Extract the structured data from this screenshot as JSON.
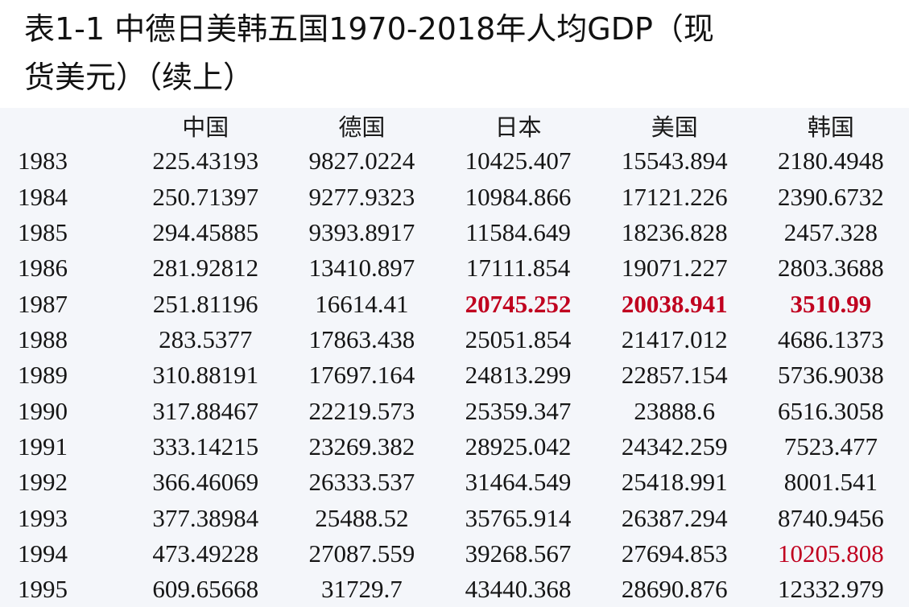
{
  "title": {
    "line1": "表1-1 中德日美韩五国1970-2018年人均GDP（现",
    "line2": "货美元）（续上）"
  },
  "table": {
    "headers": [
      "",
      "中国",
      "德国",
      "日本",
      "美国",
      "韩国"
    ],
    "rows": [
      {
        "year": "1983",
        "values": [
          "225.43193",
          "9827.0224",
          "10425.407",
          "15543.894",
          "2180.4948"
        ]
      },
      {
        "year": "1984",
        "values": [
          "250.71397",
          "9277.9323",
          "10984.866",
          "17121.226",
          "2390.6732"
        ]
      },
      {
        "year": "1985",
        "values": [
          "294.45885",
          "9393.8917",
          "11584.649",
          "18236.828",
          "2457.328"
        ]
      },
      {
        "year": "1986",
        "values": [
          "281.92812",
          "13410.897",
          "17111.854",
          "19071.227",
          "2803.3688"
        ]
      },
      {
        "year": "1987",
        "values": [
          "251.81196",
          "16614.41",
          "20745.252",
          "20038.941",
          "3510.99"
        ]
      },
      {
        "year": "1988",
        "values": [
          "283.5377",
          "17863.438",
          "25051.854",
          "21417.012",
          "4686.1373"
        ]
      },
      {
        "year": "1989",
        "values": [
          "310.88191",
          "17697.164",
          "24813.299",
          "22857.154",
          "5736.9038"
        ]
      },
      {
        "year": "1990",
        "values": [
          "317.88467",
          "22219.573",
          "25359.347",
          "23888.6",
          "6516.3058"
        ]
      },
      {
        "year": "1991",
        "values": [
          "333.14215",
          "23269.382",
          "28925.042",
          "24342.259",
          "7523.477"
        ]
      },
      {
        "year": "1992",
        "values": [
          "366.46069",
          "26333.537",
          "31464.549",
          "25418.991",
          "8001.541"
        ]
      },
      {
        "year": "1993",
        "values": [
          "377.38984",
          "25488.52",
          "35765.914",
          "26387.294",
          "8740.9456"
        ]
      },
      {
        "year": "1994",
        "values": [
          "473.49228",
          "27087.559",
          "39268.567",
          "27694.853",
          "10205.808"
        ]
      },
      {
        "year": "1995",
        "values": [
          "609.65668",
          "31729.7",
          "43440.368",
          "28690.876",
          "12332.979"
        ]
      }
    ],
    "highlighted_bold_red": [
      "1987:日本",
      "1987:美国",
      "1987:韩国"
    ],
    "highlighted_red": [
      "1994:韩国"
    ],
    "highlight_color": "#c0001f"
  }
}
